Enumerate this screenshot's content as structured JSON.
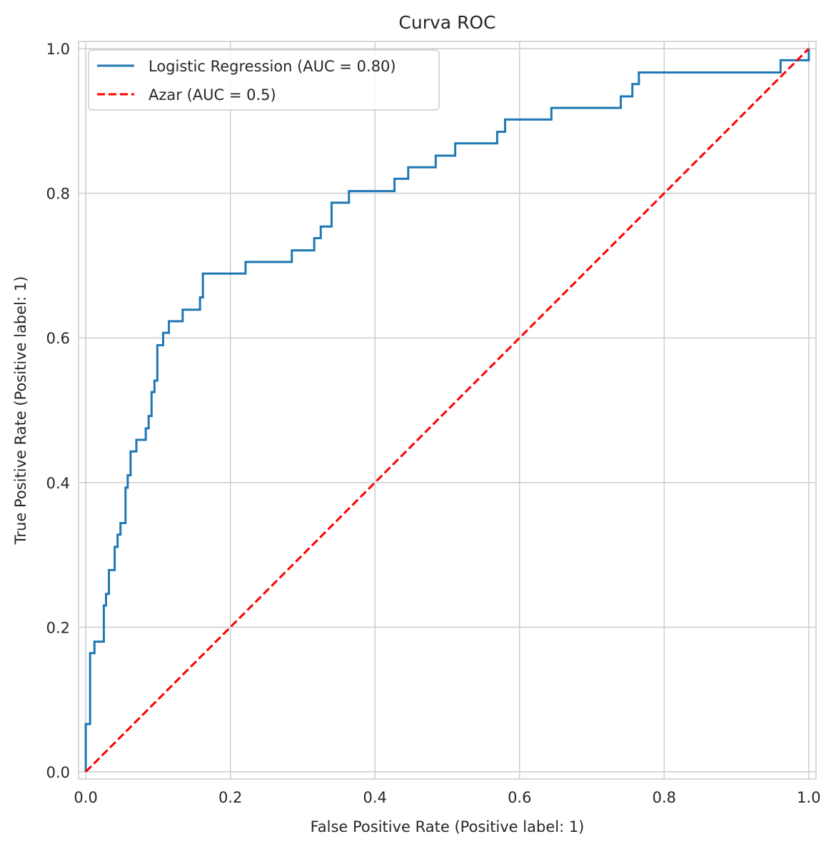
{
  "chart_data": {
    "type": "line",
    "title": "Curva ROC",
    "xlabel": "False Positive Rate (Positive label: 1)",
    "ylabel": "True Positive Rate (Positive label: 1)",
    "xlim": [
      -0.01,
      1.01
    ],
    "ylim": [
      -0.01,
      1.01
    ],
    "xticks": [
      0.0,
      0.2,
      0.4,
      0.6,
      0.8,
      1.0
    ],
    "xtick_labels": [
      "0.0",
      "0.2",
      "0.4",
      "0.6",
      "0.8",
      "1.0"
    ],
    "yticks": [
      0.0,
      0.2,
      0.4,
      0.6,
      0.8,
      1.0
    ],
    "ytick_labels": [
      "0.0",
      "0.2",
      "0.4",
      "0.6",
      "0.8",
      "1.0"
    ],
    "grid": true,
    "legend_position": "top-left",
    "series": [
      {
        "name": "Logistic Regression (AUC = 0.80)",
        "color": "#1f77b4",
        "style": "solid",
        "x": [
          0.0,
          0.0,
          0.006,
          0.006,
          0.012,
          0.012,
          0.025,
          0.025,
          0.028,
          0.028,
          0.032,
          0.032,
          0.04,
          0.04,
          0.044,
          0.044,
          0.048,
          0.048,
          0.055,
          0.055,
          0.058,
          0.058,
          0.062,
          0.062,
          0.07,
          0.07,
          0.083,
          0.083,
          0.087,
          0.087,
          0.091,
          0.091,
          0.095,
          0.095,
          0.099,
          0.099,
          0.107,
          0.107,
          0.115,
          0.115,
          0.134,
          0.134,
          0.158,
          0.158,
          0.162,
          0.162,
          0.221,
          0.221,
          0.285,
          0.285,
          0.316,
          0.316,
          0.325,
          0.325,
          0.34,
          0.34,
          0.364,
          0.364,
          0.427,
          0.427,
          0.446,
          0.446,
          0.484,
          0.484,
          0.511,
          0.511,
          0.569,
          0.569,
          0.58,
          0.58,
          0.644,
          0.644,
          0.74,
          0.74,
          0.756,
          0.756,
          0.765,
          0.765,
          0.961,
          0.961,
          1.0,
          1.0
        ],
        "y": [
          0.0,
          0.066,
          0.066,
          0.164,
          0.164,
          0.18,
          0.18,
          0.23,
          0.23,
          0.246,
          0.246,
          0.279,
          0.279,
          0.311,
          0.311,
          0.328,
          0.328,
          0.344,
          0.344,
          0.393,
          0.393,
          0.41,
          0.41,
          0.443,
          0.443,
          0.459,
          0.459,
          0.475,
          0.475,
          0.492,
          0.492,
          0.525,
          0.525,
          0.541,
          0.541,
          0.59,
          0.59,
          0.607,
          0.607,
          0.623,
          0.623,
          0.639,
          0.639,
          0.656,
          0.656,
          0.689,
          0.689,
          0.705,
          0.705,
          0.721,
          0.721,
          0.738,
          0.738,
          0.754,
          0.754,
          0.787,
          0.787,
          0.803,
          0.803,
          0.82,
          0.82,
          0.836,
          0.836,
          0.852,
          0.852,
          0.869,
          0.869,
          0.885,
          0.885,
          0.902,
          0.902,
          0.918,
          0.918,
          0.934,
          0.934,
          0.951,
          0.951,
          0.967,
          0.967,
          0.984,
          0.984,
          1.0
        ]
      },
      {
        "name": "Azar (AUC = 0.5)",
        "color": "#ff0000",
        "style": "dashed",
        "x": [
          0.0,
          1.0
        ],
        "y": [
          0.0,
          1.0
        ]
      }
    ]
  }
}
